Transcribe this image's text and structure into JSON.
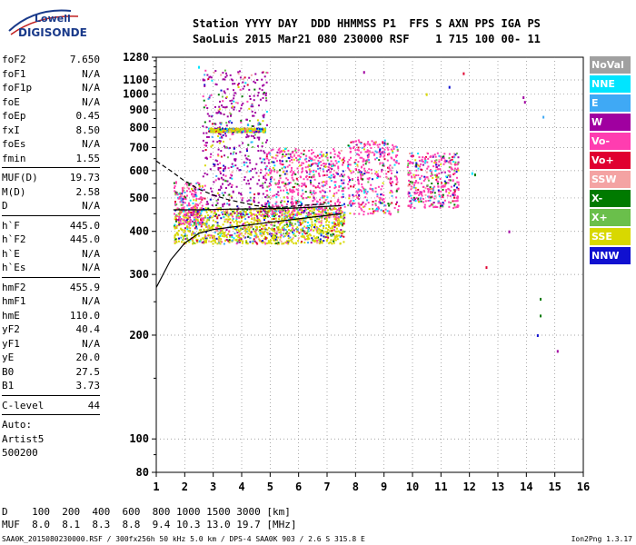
{
  "logo": {
    "top": "Lowell",
    "bottom": "DIGISONDE"
  },
  "header": {
    "line1": "Station YYYY DAY  DDD HHMMSS P1  FFS S AXN PPS IGA PS",
    "line2": "SaoLuis 2015 Mar21 080 230000 RSF    1 715 100 00- 11"
  },
  "params_a": [
    {
      "name": "foF2",
      "value": "7.650"
    },
    {
      "name": "foF1",
      "value": "N/A"
    },
    {
      "name": "foF1p",
      "value": "N/A"
    },
    {
      "name": "foE",
      "value": "N/A"
    },
    {
      "name": "foEp",
      "value": "0.45"
    },
    {
      "name": "fxI",
      "value": "8.50"
    },
    {
      "name": "foEs",
      "value": "N/A"
    },
    {
      "name": "fmin",
      "value": "1.55"
    }
  ],
  "params_b": [
    {
      "name": "MUF(D)",
      "value": "19.73"
    },
    {
      "name": "M(D)",
      "value": "2.58"
    },
    {
      "name": "D",
      "value": "N/A"
    }
  ],
  "params_c": [
    {
      "name": "h`F",
      "value": "445.0"
    },
    {
      "name": "h`F2",
      "value": "445.0"
    },
    {
      "name": "h`E",
      "value": "N/A"
    },
    {
      "name": "h`Es",
      "value": "N/A"
    }
  ],
  "params_d": [
    {
      "name": "hmF2",
      "value": "455.9"
    },
    {
      "name": "hmF1",
      "value": "N/A"
    },
    {
      "name": "hmE",
      "value": "110.0"
    },
    {
      "name": "yF2",
      "value": "40.4"
    },
    {
      "name": "yF1",
      "value": "N/A"
    },
    {
      "name": "yE",
      "value": "20.0"
    },
    {
      "name": "B0",
      "value": "27.5"
    },
    {
      "name": "B1",
      "value": "3.73"
    }
  ],
  "params_e": [
    {
      "name": "C-level",
      "value": "44"
    }
  ],
  "autoscaling": {
    "line1": "Auto:",
    "line2": "Artist5",
    "line3": "500200"
  },
  "legend": [
    {
      "label": "NoVal",
      "color": "#a0a0a0"
    },
    {
      "label": "NNE",
      "color": "#00e5ff"
    },
    {
      "label": "E",
      "color": "#3fa9f5"
    },
    {
      "label": "W",
      "color": "#a000a0"
    },
    {
      "label": "Vo-",
      "color": "#ff3db0"
    },
    {
      "label": "Vo+",
      "color": "#e00030"
    },
    {
      "label": "SSW",
      "color": "#f4a3a3"
    },
    {
      "label": "X-",
      "color": "#007a00"
    },
    {
      "label": "X+",
      "color": "#6abf4b"
    },
    {
      "label": "SSE",
      "color": "#d8d800"
    },
    {
      "label": "NNW",
      "color": "#1010d0"
    }
  ],
  "distance_table": {
    "row1": "D    100  200  400  600  800 1000 1500 3000 [km]",
    "row2": "MUF  8.0  8.1  8.3  8.8  9.4 10.3 13.0 19.7 [MHz]"
  },
  "footer": {
    "left": "SAA0K_2015080230000.RSF / 300fx256h 50 kHz 5.0 km / DPS-4 SAA0K 903 / 2.6 S 315.8 E",
    "right": "Ion2Png 1.3.17"
  },
  "chart_data": {
    "type": "scatter",
    "title": "",
    "xlabel": "",
    "ylabel": "",
    "xlim": [
      1,
      16
    ],
    "ylim": [
      80,
      1280
    ],
    "yscale": "log",
    "xticks": [
      "1",
      "2",
      "3",
      "4",
      "5",
      "6",
      "7",
      "8",
      "9",
      "10",
      "11",
      "12",
      "13",
      "14",
      "15",
      "16"
    ],
    "yticks": [
      80,
      100,
      200,
      300,
      400,
      500,
      600,
      700,
      800,
      900,
      1000,
      1100,
      1280
    ],
    "grid": true,
    "trace_bands": [
      {
        "x": [
          1.6,
          7.6
        ],
        "y": [
          370,
          470
        ],
        "color": "#d8d800",
        "note": "lower edge"
      },
      {
        "x": [
          1.6,
          2.6
        ],
        "y": [
          420,
          560
        ],
        "color": "#ff3db0"
      },
      {
        "x": [
          2.6,
          4.9
        ],
        "y": [
          440,
          1180
        ],
        "color": "#a000a0"
      },
      {
        "x": [
          2.8,
          4.8
        ],
        "y": [
          780,
          800
        ],
        "color": "#d8d800"
      },
      {
        "x": [
          4.8,
          7.6
        ],
        "y": [
          440,
          700
        ],
        "color": "#ff3db0"
      },
      {
        "x": [
          7.7,
          9.5
        ],
        "y": [
          450,
          740
        ],
        "color": "#ff3db0"
      },
      {
        "x": [
          9.8,
          11.6
        ],
        "y": [
          470,
          680
        ],
        "color": "#ff3db0"
      }
    ],
    "series": [
      {
        "type": "line",
        "style": "solid",
        "x": [
          1.0,
          1.5,
          2.0,
          2.5,
          3.0,
          3.5,
          4.0,
          4.5,
          5.0,
          5.5,
          6.0,
          6.5,
          7.0,
          7.5
        ],
        "y": [
          275,
          330,
          370,
          395,
          405,
          410,
          415,
          420,
          425,
          430,
          435,
          440,
          445,
          450
        ]
      },
      {
        "type": "line",
        "style": "dashed",
        "x": [
          1.0,
          1.5,
          2.0,
          2.5,
          3.0,
          3.5,
          4.0,
          4.5,
          5.0,
          5.5,
          6.0,
          6.5,
          7.0
        ],
        "y": [
          640,
          600,
          560,
          530,
          510,
          495,
          485,
          475,
          470,
          470,
          475,
          478,
          480
        ]
      },
      {
        "type": "line",
        "style": "solid",
        "x": [
          1.6,
          2.5,
          3.5,
          4.5,
          5.5,
          6.5,
          7.5
        ],
        "y": [
          462,
          462,
          464,
          465,
          466,
          470,
          475
        ]
      }
    ],
    "isolated_points": [
      {
        "x": 2.5,
        "y": 1200,
        "color": "#00e5ff"
      },
      {
        "x": 8.3,
        "y": 1160,
        "color": "#a000a0"
      },
      {
        "x": 11.8,
        "y": 1150,
        "color": "#e00030"
      },
      {
        "x": 11.3,
        "y": 1050,
        "color": "#1010d0"
      },
      {
        "x": 10.5,
        "y": 1000,
        "color": "#d8d800"
      },
      {
        "x": 13.9,
        "y": 980,
        "color": "#a000a0"
      },
      {
        "x": 13.95,
        "y": 950,
        "color": "#a000a0"
      },
      {
        "x": 14.6,
        "y": 860,
        "color": "#3fa9f5"
      },
      {
        "x": 12.1,
        "y": 590,
        "color": "#00e5ff"
      },
      {
        "x": 12.2,
        "y": 585,
        "color": "#007a00"
      },
      {
        "x": 13.4,
        "y": 400,
        "color": "#a000a0"
      },
      {
        "x": 12.6,
        "y": 315,
        "color": "#e00030"
      },
      {
        "x": 14.5,
        "y": 255,
        "color": "#007a00"
      },
      {
        "x": 14.5,
        "y": 228,
        "color": "#007a00"
      },
      {
        "x": 14.4,
        "y": 200,
        "color": "#1010d0"
      },
      {
        "x": 15.1,
        "y": 180,
        "color": "#a000a0"
      }
    ]
  }
}
